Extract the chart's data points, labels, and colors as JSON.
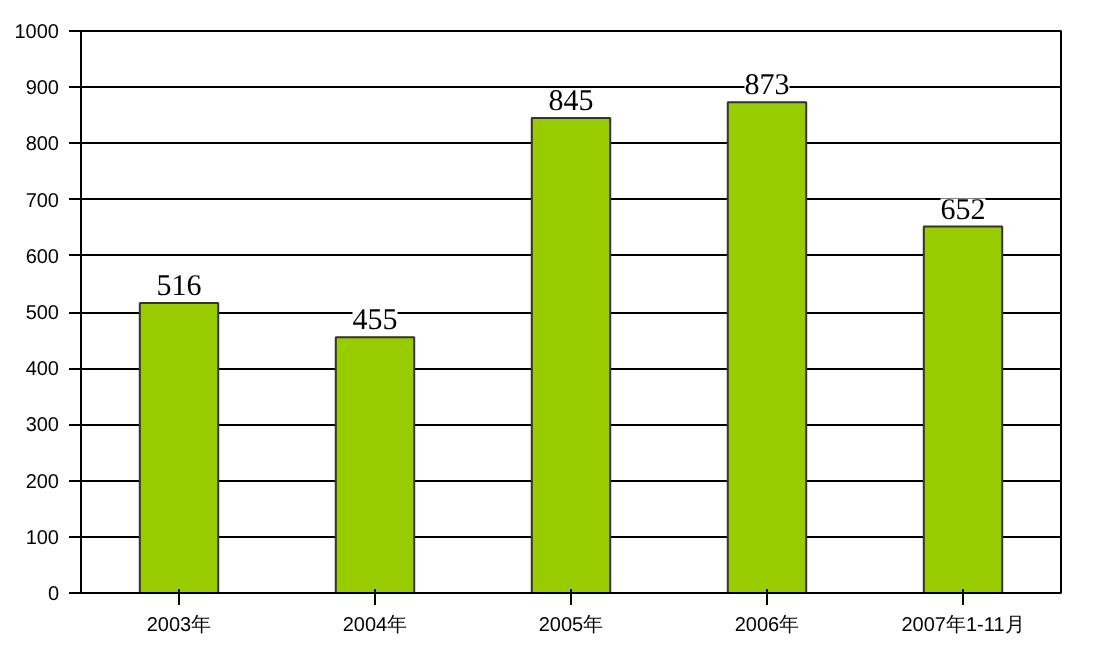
{
  "chart_data": {
    "type": "bar",
    "categories": [
      "2003年",
      "2004年",
      "2005年",
      "2006年",
      "2007年1-11月"
    ],
    "values": [
      516,
      455,
      845,
      873,
      652
    ],
    "color": "#99cc00",
    "ylim": [
      0,
      1000
    ],
    "yticks": [
      0,
      100,
      200,
      300,
      400,
      500,
      600,
      700,
      800,
      900,
      1000
    ],
    "grid": "y",
    "data_labels": true
  }
}
